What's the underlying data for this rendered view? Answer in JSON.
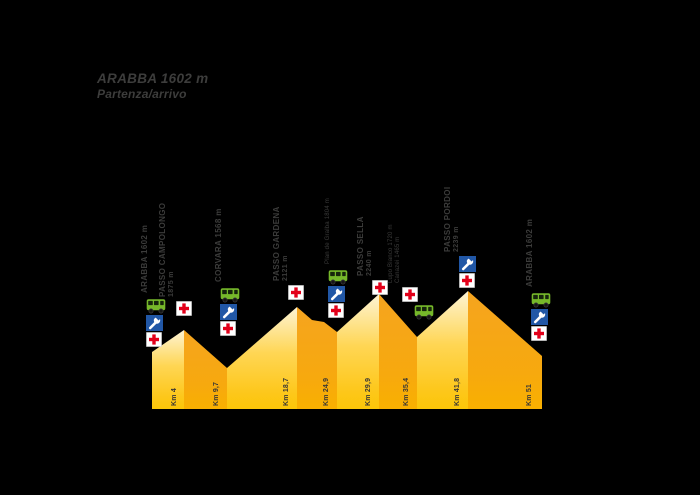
{
  "title": {
    "line1": "ARABBA 1602 m",
    "line2": "Partenza/arrivo"
  },
  "colors": {
    "background": "#000000",
    "label_text": "#3C3C3B",
    "slope_light": "#FFD654",
    "slope_dark": "#F6A41F",
    "slope_peak_highlight": "#FDF4D5",
    "first_aid_red": "#E2001A",
    "wrench_blue": "#2157A6",
    "bus_green": "#76B82A"
  },
  "icons": {
    "bus": "bus-stop",
    "wrench": "mechanical-assistance",
    "firstaid": "first-aid-cross"
  },
  "stations": [
    {
      "id": "arabba-start",
      "km": 0,
      "lines": [
        "ARABBA 1602 m"
      ],
      "style": "bold",
      "icons": [
        "bus",
        "wrench",
        "firstaid"
      ]
    },
    {
      "id": "passo-campolongo",
      "km": 4,
      "lines": [
        "PASSO CAMPOLONGO",
        "1875 m"
      ],
      "style": "bold",
      "icons": [
        "firstaid"
      ]
    },
    {
      "id": "corvara",
      "km": 9.7,
      "lines": [
        "CORVARA 1568 m"
      ],
      "style": "bold",
      "icons": [
        "bus",
        "wrench",
        "firstaid"
      ]
    },
    {
      "id": "passo-gardena",
      "km": 18.7,
      "lines": [
        "PASSO GARDENA",
        "2121 m"
      ],
      "style": "bold",
      "icons": [
        "firstaid"
      ]
    },
    {
      "id": "plan-de-gralba",
      "km": 24.9,
      "lines": [
        "Plan de Gralba 1804 m"
      ],
      "style": "thin",
      "icons": [
        "bus",
        "wrench",
        "firstaid"
      ]
    },
    {
      "id": "passo-sella",
      "km": 29.9,
      "lines": [
        "PASSO SELLA",
        "2240 m"
      ],
      "style": "bold",
      "icons": [
        "firstaid"
      ]
    },
    {
      "id": "lupo-bianco-canazei",
      "km": 35.4,
      "lines": [
        "Lupo Bianco 1720 m",
        "Canazei 1465 m"
      ],
      "style": "thin",
      "icons": [
        "firstaid",
        "bus"
      ]
    },
    {
      "id": "passo-pordoi",
      "km": 41.8,
      "lines": [
        "PASSO PORDOI",
        "2239 m"
      ],
      "style": "bold",
      "icons": [
        "wrench",
        "firstaid"
      ]
    },
    {
      "id": "arabba-finish",
      "km": 51,
      "lines": [
        "ARABBA 1602 m"
      ],
      "style": "bold",
      "icons": [
        "bus",
        "wrench",
        "firstaid"
      ]
    }
  ],
  "km_ticks": [
    "Km 4",
    "Km 9,7",
    "Km 18,7",
    "Km 24,9",
    "Km 29,9",
    "Km 35,4",
    "Km 41,8",
    "Km 51"
  ],
  "chart_data": {
    "type": "area",
    "title": "ARABBA 1602 m",
    "subtitle": "Partenza/arrivo",
    "xlabel": "Km",
    "ylabel": "m",
    "x": [
      0,
      4,
      9.7,
      18.7,
      24.9,
      29.9,
      35.4,
      41.8,
      51
    ],
    "y": [
      1602,
      1875,
      1568,
      2121,
      1804,
      2240,
      1720,
      2239,
      1602
    ],
    "point_labels": [
      "Arabba",
      "Passo Campolongo",
      "Corvara",
      "Passo Gardena",
      "Plan de Gralba",
      "Passo Sella",
      "Lupo Bianco/Canazei",
      "Passo Pordoi",
      "Arabba"
    ],
    "x_ticks": [
      "Km 4",
      "Km 9,7",
      "Km 18,7",
      "Km 24,9",
      "Km 29,9",
      "Km 35,4",
      "Km 41,8",
      "Km 51"
    ],
    "xlim": [
      0,
      51
    ],
    "grid": false,
    "legend": "none",
    "style": "two-tone pyramid faces, light ascent / dark descent"
  }
}
